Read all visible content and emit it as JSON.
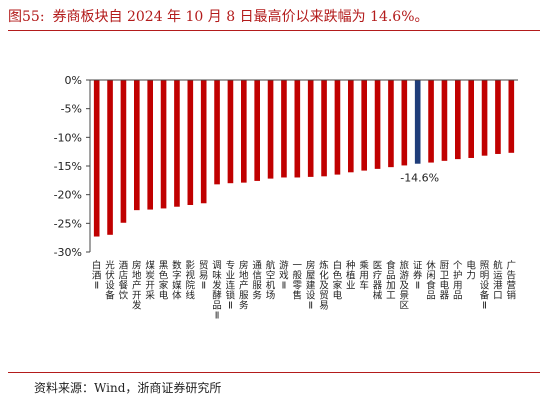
{
  "header": {
    "figure_label": "图55:",
    "title_text": "券商板块自 2024 年 10 月 8 日最高价以来跌幅为 14.6%。"
  },
  "footer": {
    "source_text": "资料来源：Wind，浙商证券研究所"
  },
  "chart_data": {
    "type": "bar",
    "ylim": [
      -30,
      0
    ],
    "yticks": [
      0,
      -5,
      -10,
      -15,
      -20,
      -25,
      -30
    ],
    "ytick_labels": [
      "0%",
      "-5%",
      "-10%",
      "-15%",
      "-20%",
      "-25%",
      "-30%"
    ],
    "grid": false,
    "colors": {
      "default": "#c00000",
      "highlight": "#1f3d7a"
    },
    "highlight_category": "证券Ⅱ",
    "annotation": "-14.6%",
    "categories": [
      "白酒Ⅱ",
      "光伏设备",
      "酒店餐饮",
      "房地产开发",
      "煤炭开采",
      "黑色家电",
      "数字媒体",
      "影视院线",
      "贸易Ⅱ",
      "调味发酵品Ⅱ",
      "专业连锁Ⅱ",
      "房地产服务",
      "通信服务",
      "航空机场",
      "游戏Ⅱ",
      "一般零售",
      "房屋建设Ⅱ",
      "炼化及贸易",
      "白色家电",
      "种植业",
      "乘用车",
      "医疗器械",
      "食品加工",
      "旅游及景区",
      "证券Ⅱ",
      "休闲食品",
      "厨卫电器",
      "个护用品",
      "电力",
      "照明设备Ⅱ",
      "航运港口",
      "广告营销"
    ],
    "values": [
      -27.3,
      -27.0,
      -24.9,
      -22.7,
      -22.6,
      -22.4,
      -22.1,
      -21.8,
      -21.5,
      -18.2,
      -18.0,
      -17.9,
      -17.6,
      -17.2,
      -17.0,
      -17.0,
      -16.9,
      -16.8,
      -16.5,
      -16.1,
      -15.8,
      -15.5,
      -15.2,
      -14.9,
      -14.6,
      -14.4,
      -14.1,
      -13.8,
      -13.6,
      -13.2,
      -12.9,
      -12.7
    ]
  }
}
